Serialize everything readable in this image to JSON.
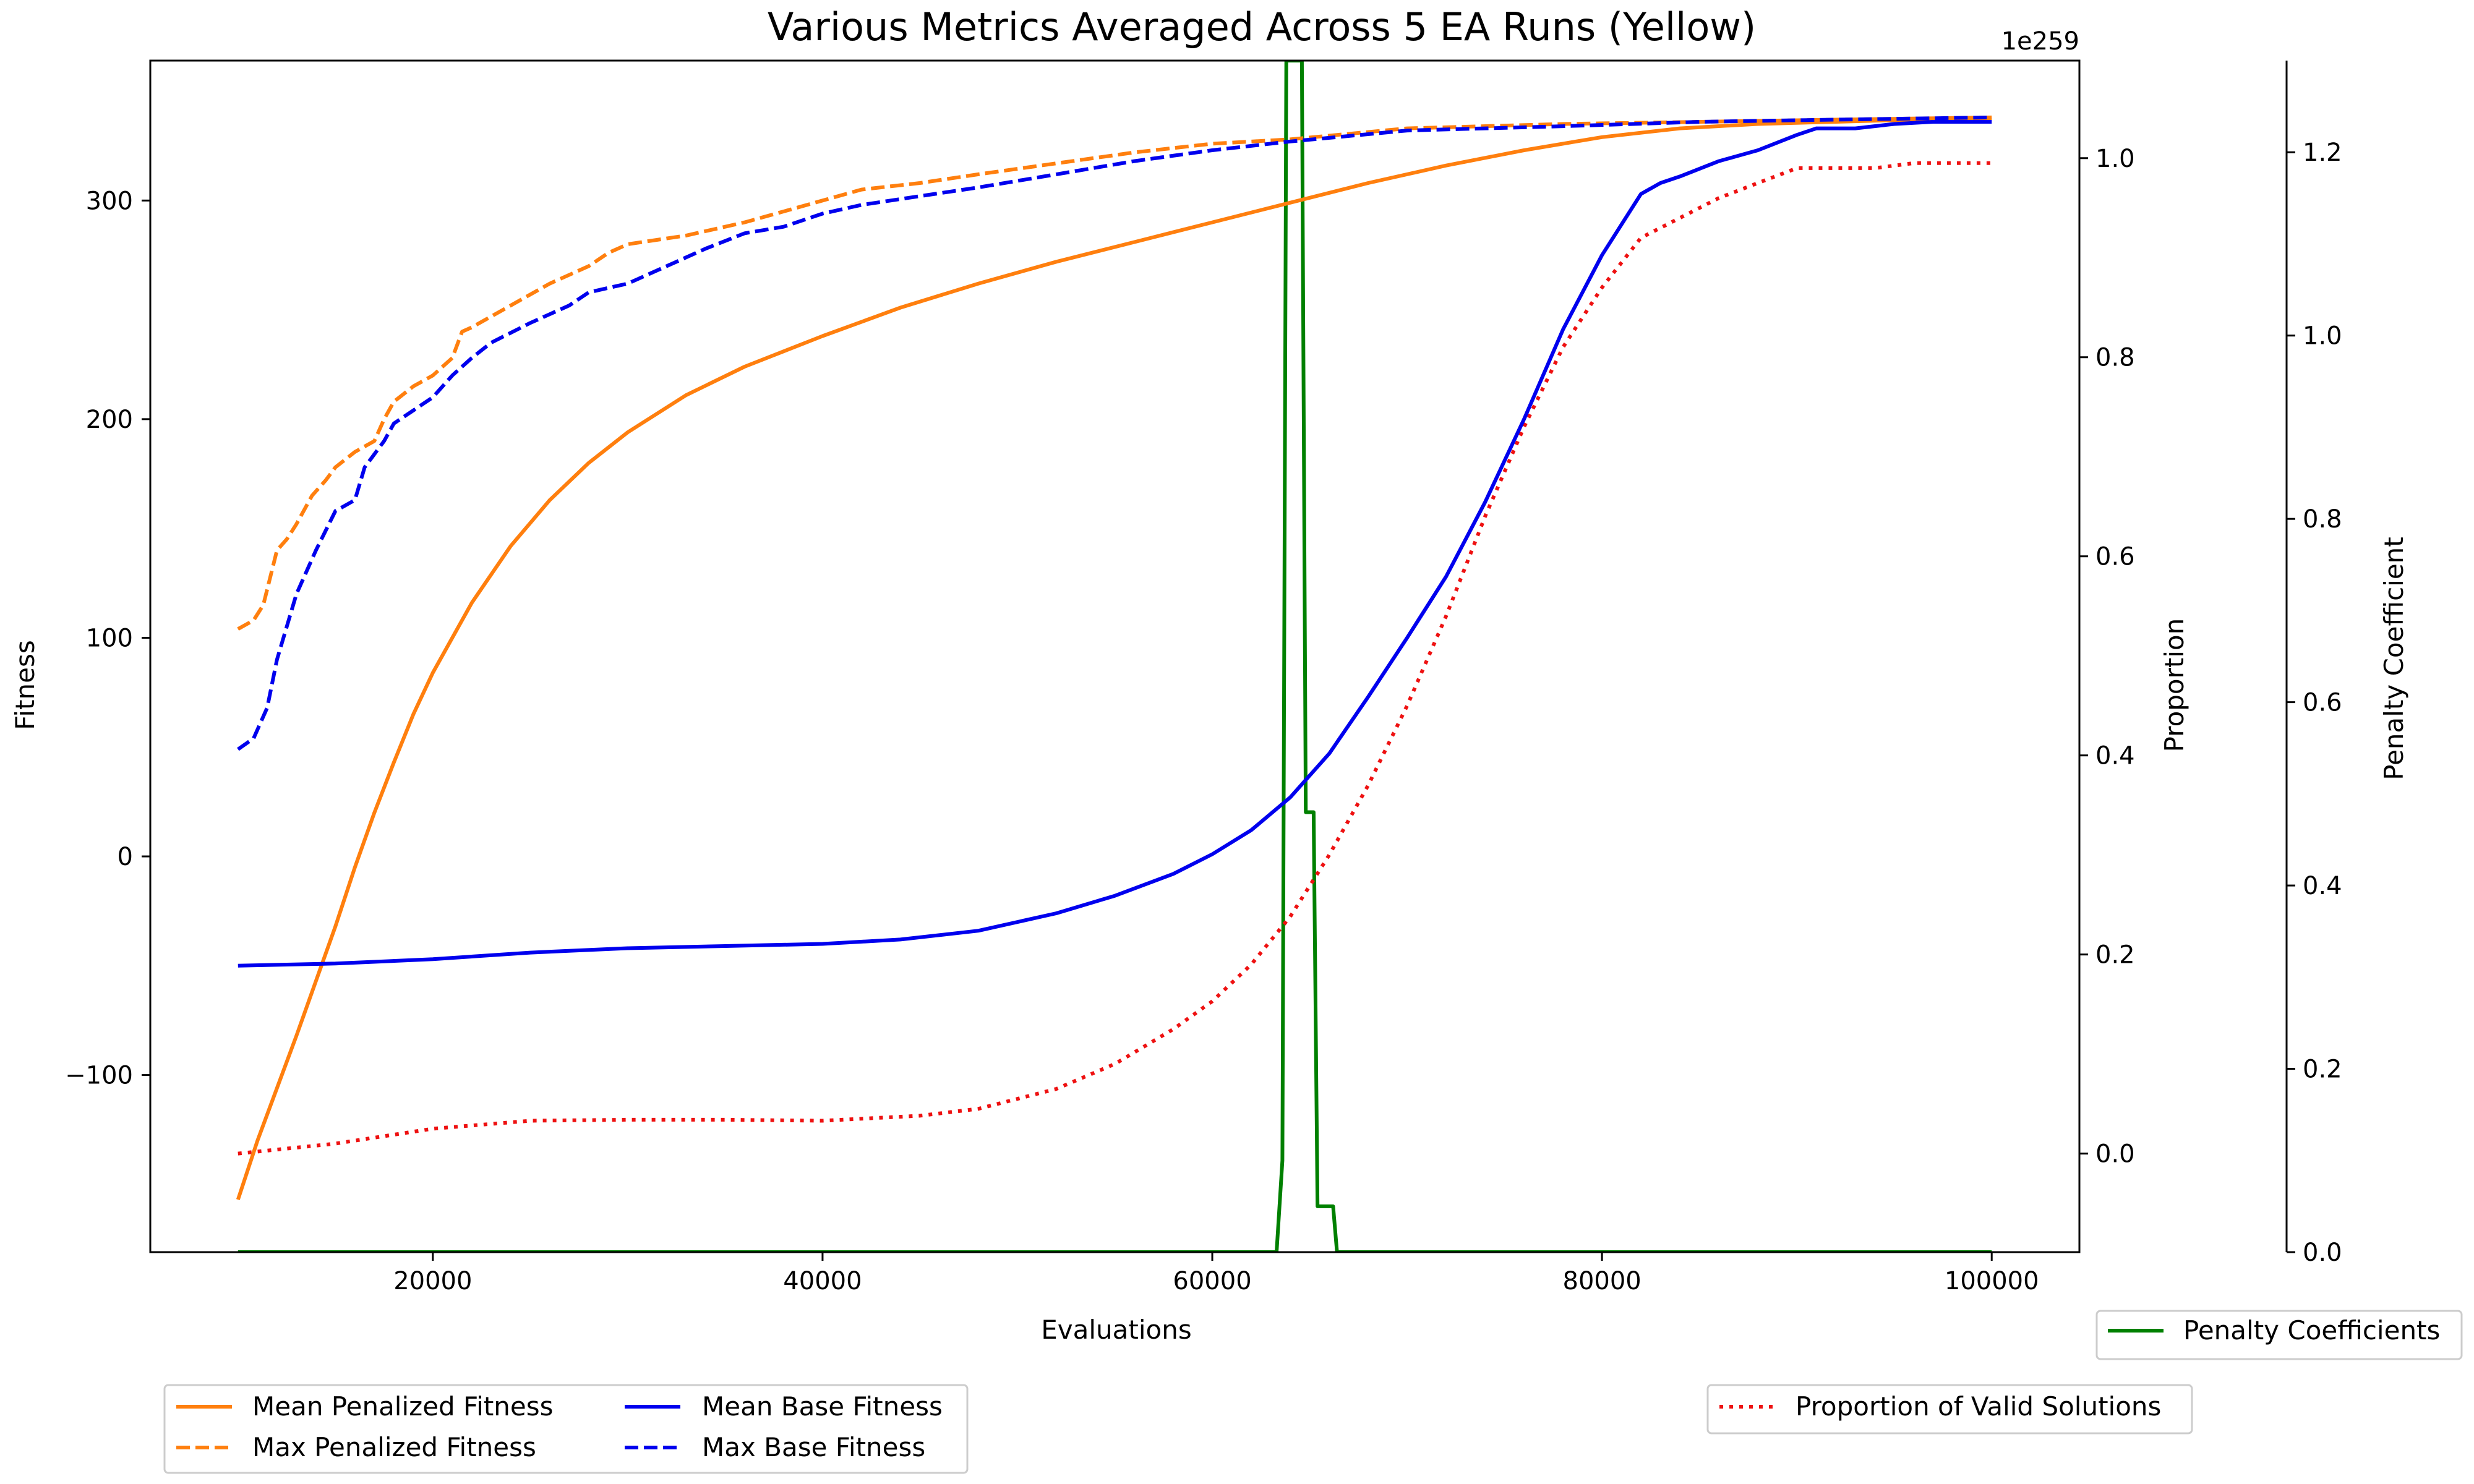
{
  "chart_data": {
    "type": "line",
    "title": "Various Metrics Averaged Across 5 EA Runs (Yellow)",
    "xlabel": "Evaluations",
    "xlim": [
      5500,
      104500
    ],
    "x_ticks": [
      20000,
      40000,
      60000,
      80000,
      100000
    ],
    "x_tick_labels": [
      "20000",
      "40000",
      "60000",
      "80000",
      "100000"
    ],
    "axes": {
      "fitness": {
        "label": "Fitness",
        "ylim": [
          -181,
          364
        ],
        "ticks": [
          -100,
          0,
          100,
          200,
          300
        ],
        "tick_labels": [
          "−100",
          "0",
          "100",
          "200",
          "300"
        ]
      },
      "proportion": {
        "label": "Proportion",
        "offset_text": "1e259",
        "ylim": [
          -0.099,
          1.098
        ],
        "ticks": [
          0.0,
          0.2,
          0.4,
          0.6,
          0.8,
          1.0
        ],
        "tick_labels": [
          "0.0",
          "0.2",
          "0.4",
          "0.6",
          "0.8",
          "1.0"
        ]
      },
      "penalty": {
        "label": "Penalty Coefficient",
        "ylim": [
          0.0,
          1.3
        ],
        "ticks": [
          0.0,
          0.2,
          0.4,
          0.6,
          0.8,
          1.0,
          1.2
        ],
        "tick_labels": [
          "0.0",
          "0.2",
          "0.4",
          "0.6",
          "0.8",
          "1.0",
          "1.2"
        ]
      }
    },
    "series": [
      {
        "name": "Mean Penalized Fitness",
        "axis": "fitness",
        "color": "#ff7f0e",
        "style": "solid",
        "x": [
          10000,
          11000,
          12000,
          13000,
          14000,
          15000,
          16000,
          17000,
          18000,
          19000,
          20000,
          22000,
          24000,
          26000,
          28000,
          30000,
          33000,
          36000,
          40000,
          44000,
          48000,
          52000,
          56000,
          60000,
          64000,
          68000,
          72000,
          76000,
          80000,
          84000,
          88000,
          92000,
          96000,
          100000
        ],
        "y": [
          -157,
          -130,
          -106,
          -82,
          -57,
          -32,
          -5,
          20,
          43,
          65,
          84,
          116,
          142,
          163,
          180,
          194,
          211,
          224,
          238,
          251,
          262,
          272,
          281,
          290,
          299,
          308,
          316,
          323,
          329,
          333,
          335,
          336,
          337,
          337
        ]
      },
      {
        "name": "Max Penalized Fitness",
        "axis": "fitness",
        "color": "#ff7f0e",
        "style": "dashed",
        "x": [
          10000,
          10800,
          11300,
          12000,
          12500,
          13000,
          13800,
          14500,
          15000,
          16000,
          17000,
          17500,
          18000,
          19000,
          20000,
          21000,
          21500,
          22000,
          24000,
          26000,
          28000,
          29000,
          30000,
          33000,
          36000,
          38000,
          40000,
          42000,
          45000,
          48000,
          52000,
          56000,
          60000,
          64000,
          70000,
          78000,
          85000,
          92000,
          100000
        ],
        "y": [
          104,
          108,
          115,
          140,
          145,
          152,
          165,
          172,
          178,
          185,
          190,
          200,
          208,
          215,
          220,
          228,
          240,
          242,
          252,
          262,
          270,
          276,
          280,
          284,
          290,
          295,
          300,
          305,
          308,
          312,
          317,
          322,
          326,
          328,
          333,
          335,
          336,
          337,
          338
        ]
      },
      {
        "name": "Mean Base Fitness",
        "axis": "fitness",
        "color": "#0000ee",
        "style": "solid",
        "x": [
          10000,
          15000,
          20000,
          25000,
          30000,
          35000,
          40000,
          44000,
          48000,
          52000,
          55000,
          58000,
          60000,
          62000,
          64000,
          66000,
          68000,
          70000,
          72000,
          74000,
          76000,
          78000,
          80000,
          82000,
          83000,
          84000,
          86000,
          88000,
          90000,
          91000,
          93000,
          95000,
          97000,
          100000
        ],
        "y": [
          -50,
          -49,
          -47,
          -44,
          -42,
          -41,
          -40,
          -38,
          -34,
          -26,
          -18,
          -8,
          1,
          12,
          27,
          47,
          73,
          100,
          128,
          162,
          200,
          241,
          275,
          303,
          308,
          311,
          318,
          323,
          330,
          333,
          333,
          335,
          336,
          336
        ]
      },
      {
        "name": "Max Base Fitness",
        "axis": "fitness",
        "color": "#0000ee",
        "style": "dashed",
        "x": [
          10000,
          10800,
          11500,
          12000,
          13000,
          14000,
          15000,
          16000,
          16500,
          17500,
          18000,
          19000,
          20000,
          21000,
          22000,
          23000,
          25000,
          27000,
          28000,
          30000,
          32000,
          34000,
          36000,
          38000,
          40000,
          42000,
          45000,
          48000,
          52000,
          56000,
          60000,
          64000,
          70000,
          78000,
          85000,
          92000,
          100000
        ],
        "y": [
          49,
          54,
          68,
          90,
          120,
          140,
          158,
          163,
          178,
          190,
          198,
          204,
          210,
          220,
          228,
          235,
          244,
          252,
          258,
          262,
          270,
          278,
          285,
          288,
          294,
          298,
          302,
          306,
          312,
          318,
          323,
          327,
          332,
          334,
          336,
          337,
          338
        ]
      },
      {
        "name": "Proportion of Valid Solutions",
        "axis": "proportion",
        "color": "#ee1111",
        "style": "dotted",
        "x": [
          10000,
          15000,
          20000,
          25000,
          30000,
          35000,
          40000,
          45000,
          48000,
          52000,
          55000,
          58000,
          60000,
          62000,
          64000,
          66000,
          68000,
          70000,
          72000,
          74000,
          76000,
          78000,
          80000,
          82000,
          84000,
          86000,
          88000,
          90000,
          92000,
          94000,
          96000,
          98000,
          100000
        ],
        "y": [
          0.0,
          0.01,
          0.025,
          0.033,
          0.034,
          0.034,
          0.033,
          0.038,
          0.045,
          0.065,
          0.09,
          0.125,
          0.153,
          0.19,
          0.238,
          0.3,
          0.37,
          0.45,
          0.54,
          0.64,
          0.73,
          0.81,
          0.87,
          0.92,
          0.94,
          0.96,
          0.975,
          0.99,
          0.99,
          0.99,
          0.995,
          0.995,
          0.995
        ]
      },
      {
        "name": "Penalty Coefficients",
        "axis": "penalty",
        "color": "#008000",
        "style": "solid",
        "x": [
          10000,
          63300,
          63600,
          63800,
          64000,
          64200,
          64400,
          64600,
          64800,
          65000,
          65200,
          65400,
          65600,
          66000,
          66200,
          66400,
          66600,
          67000,
          100000
        ],
        "y": [
          0.0,
          0.0,
          0.1,
          1.3,
          1.3,
          1.3,
          1.3,
          1.3,
          0.48,
          0.48,
          0.48,
          0.05,
          0.05,
          0.05,
          0.05,
          0.0,
          0.0,
          0.0,
          0.0
        ]
      }
    ],
    "legends": [
      {
        "entries": [
          "Mean Penalized Fitness",
          "Max Penalized Fitness",
          "Mean Base Fitness",
          "Max Base Fitness"
        ]
      },
      {
        "entries": [
          "Proportion of Valid Solutions"
        ]
      },
      {
        "entries": [
          "Penalty Coefficients"
        ]
      }
    ]
  }
}
